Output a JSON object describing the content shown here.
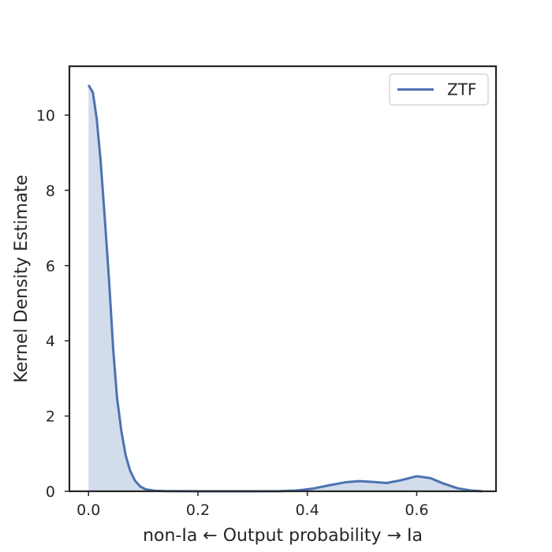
{
  "chart_data": {
    "type": "area",
    "title": "",
    "xlabel": "non-Ia ← Output probability → Ia",
    "ylabel": "Kernel Density Estimate",
    "xlim": [
      -0.035,
      0.745
    ],
    "ylim": [
      0,
      11.3
    ],
    "x_ticks": [
      0.0,
      0.2,
      0.4,
      0.6
    ],
    "x_tick_labels": [
      "0.0",
      "0.2",
      "0.4",
      "0.6"
    ],
    "y_ticks": [
      0,
      2,
      4,
      6,
      8,
      10
    ],
    "y_tick_labels": [
      "0",
      "2",
      "4",
      "6",
      "8",
      "10"
    ],
    "grid": false,
    "legend_position": "top-right",
    "series": [
      {
        "name": "ZTF",
        "color": "#4c72b0",
        "fill_color": "#4c72b0",
        "points": [
          [
            0.0,
            10.8
          ],
          [
            0.008,
            10.6
          ],
          [
            0.015,
            9.9
          ],
          [
            0.022,
            8.8
          ],
          [
            0.03,
            7.2
          ],
          [
            0.038,
            5.5
          ],
          [
            0.045,
            3.8
          ],
          [
            0.052,
            2.5
          ],
          [
            0.06,
            1.6
          ],
          [
            0.068,
            0.95
          ],
          [
            0.076,
            0.55
          ],
          [
            0.085,
            0.28
          ],
          [
            0.095,
            0.12
          ],
          [
            0.105,
            0.05
          ],
          [
            0.12,
            0.015
          ],
          [
            0.14,
            0.004
          ],
          [
            0.2,
            0.0
          ],
          [
            0.3,
            0.0
          ],
          [
            0.35,
            0.003
          ],
          [
            0.38,
            0.02
          ],
          [
            0.41,
            0.07
          ],
          [
            0.44,
            0.16
          ],
          [
            0.47,
            0.24
          ],
          [
            0.495,
            0.27
          ],
          [
            0.52,
            0.25
          ],
          [
            0.545,
            0.22
          ],
          [
            0.57,
            0.29
          ],
          [
            0.6,
            0.4
          ],
          [
            0.625,
            0.35
          ],
          [
            0.65,
            0.2
          ],
          [
            0.675,
            0.08
          ],
          [
            0.7,
            0.02
          ],
          [
            0.72,
            0.0
          ]
        ]
      }
    ]
  }
}
